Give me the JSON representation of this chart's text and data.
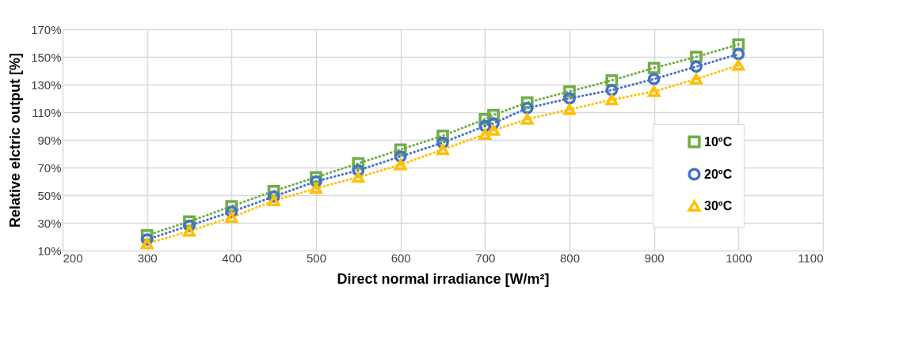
{
  "chart_data": {
    "type": "line",
    "xlabel": "Direct normal irradiance [W/m²]",
    "ylabel": "Relative elctric output [%]",
    "x": [
      300,
      350,
      400,
      450,
      500,
      550,
      600,
      650,
      700,
      710,
      750,
      800,
      850,
      900,
      950,
      1000
    ],
    "series": [
      {
        "name": "10ºC",
        "color": "#70ad47",
        "marker": "square",
        "values": [
          21,
          31,
          42,
          53,
          63,
          73,
          83,
          93,
          105,
          108,
          117,
          125,
          133,
          142,
          150,
          159
        ]
      },
      {
        "name": "20ºC",
        "color": "#4472c4",
        "marker": "circle",
        "values": [
          18,
          28,
          38,
          49,
          60,
          68,
          78,
          88,
          100,
          102,
          113,
          120,
          126,
          134,
          143,
          152
        ]
      },
      {
        "name": "30ºC",
        "color": "#ffc000",
        "marker": "triangle",
        "values": [
          15,
          24,
          34,
          46,
          55,
          63,
          72,
          83,
          94,
          97,
          105,
          112,
          119,
          125,
          134,
          144
        ]
      }
    ],
    "line_style": "dotted",
    "xlim": [
      200,
      1100
    ],
    "xticks": [
      200,
      300,
      400,
      500,
      600,
      700,
      800,
      900,
      1000,
      1100
    ],
    "ylim": [
      10,
      170
    ],
    "yticks": [
      {
        "value": 10,
        "label": "10%"
      },
      {
        "value": 30,
        "label": "30%"
      },
      {
        "value": 50,
        "label": "50%"
      },
      {
        "value": 70,
        "label": "70%"
      },
      {
        "value": 90,
        "label": "90%"
      },
      {
        "value": 110,
        "label": "110%"
      },
      {
        "value": 130,
        "label": "130%"
      },
      {
        "value": 150,
        "label": "150%"
      },
      {
        "value": 170,
        "label": "170%"
      }
    ],
    "grid": true,
    "legend": "right"
  }
}
